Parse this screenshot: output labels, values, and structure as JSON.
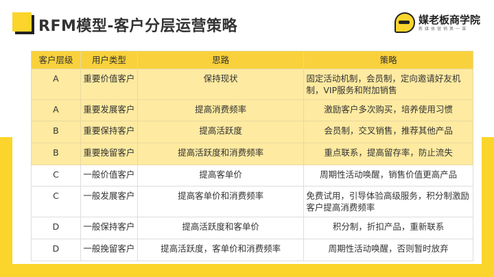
{
  "title": "RFM模型-客户分层运营策略",
  "logo": {
    "name": "媒老板商学院",
    "sub": "新媒体营销第一课"
  },
  "colors": {
    "accent": "#fbd52b",
    "header": "#f9d13c",
    "highlight": "#feeaa0"
  },
  "table": {
    "headers": [
      "客户层级",
      "用户类型",
      "思路",
      "策略"
    ],
    "rows": [
      [
        "A",
        "重要价值客户",
        "保持现状",
        "固定活动机制，会员制，定向邀请好友机制，VIP服务和附加销售"
      ],
      [
        "A",
        "重要发展客户",
        "提高消费频率",
        "激励客户多次购买，培养使用习惯"
      ],
      [
        "B",
        "重要保持客户",
        "提高活跃度",
        "会员制，交叉销售，推荐其他产品"
      ],
      [
        "B",
        "重要挽留客户",
        "提高活跃度和消费频率",
        "重点联系，提高留存率，防止流失"
      ],
      [
        "C",
        "一般价值客户",
        "提高客单价",
        "周期性活动唤醒，销售价值更高产品"
      ],
      [
        "C",
        "一般发展客户",
        "提高客单价和消费频率",
        "免费试用，引导体验高级服务，积分制激励客户提高消费频率"
      ],
      [
        "D",
        "一般保持客户",
        "提高活跃度和客单价",
        "积分制，折扣产品，重新联系"
      ],
      [
        "D",
        "一般挽留客户",
        "提高活跃度，客单价和消费频率",
        "周期性活动唤醒，否则暂时放弃"
      ]
    ]
  }
}
